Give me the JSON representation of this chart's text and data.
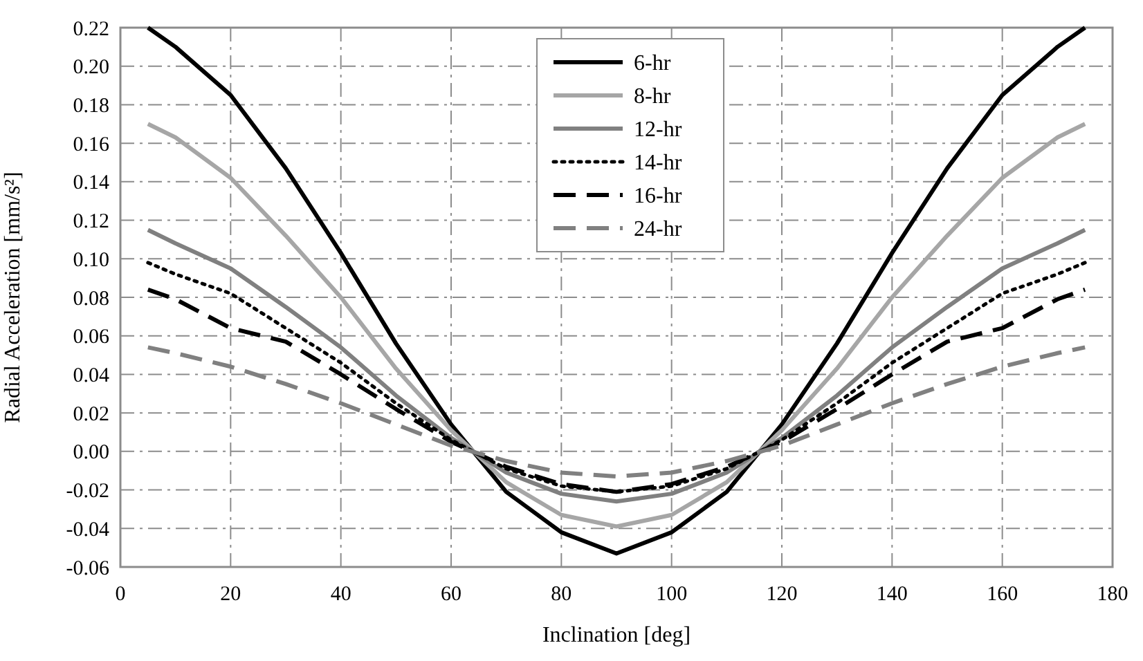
{
  "chart_data": {
    "type": "line",
    "xlabel": "Inclination [deg]",
    "ylabel": "Radial Acceleration [mm/s²]",
    "x": [
      5,
      10,
      20,
      30,
      40,
      50,
      60,
      70,
      80,
      90,
      100,
      110,
      120,
      130,
      140,
      150,
      160,
      170,
      175
    ],
    "xlim": [
      0,
      180
    ],
    "xticks": [
      0,
      20,
      40,
      60,
      80,
      100,
      120,
      140,
      160,
      180
    ],
    "ylim": [
      -0.06,
      0.22
    ],
    "yticks": [
      {
        "value": -0.06,
        "label": "-0.06"
      },
      {
        "value": -0.04,
        "label": "-0.04"
      },
      {
        "value": -0.02,
        "label": "-0.02"
      },
      {
        "value": 0,
        "label": "0.00"
      },
      {
        "value": 0.02,
        "label": "0.02"
      },
      {
        "value": 0.04,
        "label": "0.04"
      },
      {
        "value": 0.06,
        "label": "0.06"
      },
      {
        "value": 0.08,
        "label": "0.08"
      },
      {
        "value": 0.1,
        "label": "0.10"
      },
      {
        "value": 0.12,
        "label": "0.12"
      },
      {
        "value": 0.14,
        "label": "0.14"
      },
      {
        "value": 0.16,
        "label": "0.16"
      },
      {
        "value": 0.18,
        "label": "0.18"
      },
      {
        "value": 0.2,
        "label": "0.20"
      },
      {
        "value": 0.22,
        "label": "0.22"
      }
    ],
    "grid": true,
    "legend": "top",
    "series": [
      {
        "name": "6-hr",
        "color": "#000000",
        "line_style": "solid",
        "values": [
          0.22,
          0.21,
          0.185,
          0.147,
          0.103,
          0.056,
          0.014,
          -0.021,
          -0.042,
          -0.053,
          -0.042,
          -0.021,
          0.014,
          0.056,
          0.103,
          0.147,
          0.185,
          0.21,
          0.22
        ]
      },
      {
        "name": "8-hr",
        "color": "#a6a6a6",
        "line_style": "solid",
        "values": [
          0.17,
          0.163,
          0.142,
          0.112,
          0.08,
          0.043,
          0.011,
          -0.016,
          -0.033,
          -0.039,
          -0.033,
          -0.016,
          0.011,
          0.043,
          0.08,
          0.112,
          0.142,
          0.163,
          0.17
        ]
      },
      {
        "name": "12-hr",
        "color": "#808080",
        "line_style": "solid",
        "values": [
          0.115,
          0.108,
          0.095,
          0.075,
          0.054,
          0.029,
          0.007,
          -0.011,
          -0.022,
          -0.026,
          -0.022,
          -0.011,
          0.007,
          0.029,
          0.054,
          0.075,
          0.095,
          0.108,
          0.115
        ]
      },
      {
        "name": "14-hr",
        "color": "#000000",
        "line_style": "dotted",
        "values": [
          0.098,
          0.092,
          0.082,
          0.064,
          0.046,
          0.025,
          0.006,
          -0.009,
          -0.018,
          -0.021,
          -0.018,
          -0.009,
          0.006,
          0.025,
          0.046,
          0.064,
          0.082,
          0.092,
          0.098
        ]
      },
      {
        "name": "16-hr",
        "color": "#000000",
        "line_style": "dashed",
        "values": [
          0.084,
          0.079,
          0.064,
          0.057,
          0.04,
          0.022,
          0.005,
          -0.008,
          -0.017,
          -0.021,
          -0.017,
          -0.008,
          0.005,
          0.022,
          0.04,
          0.057,
          0.064,
          0.079,
          0.084
        ]
      },
      {
        "name": "24-hr",
        "color": "#808080",
        "line_style": "dashed",
        "values": [
          0.054,
          0.051,
          0.044,
          0.035,
          0.025,
          0.014,
          0.003,
          -0.005,
          -0.011,
          -0.013,
          -0.011,
          -0.005,
          0.003,
          0.014,
          0.025,
          0.035,
          0.044,
          0.051,
          0.054
        ]
      }
    ]
  }
}
